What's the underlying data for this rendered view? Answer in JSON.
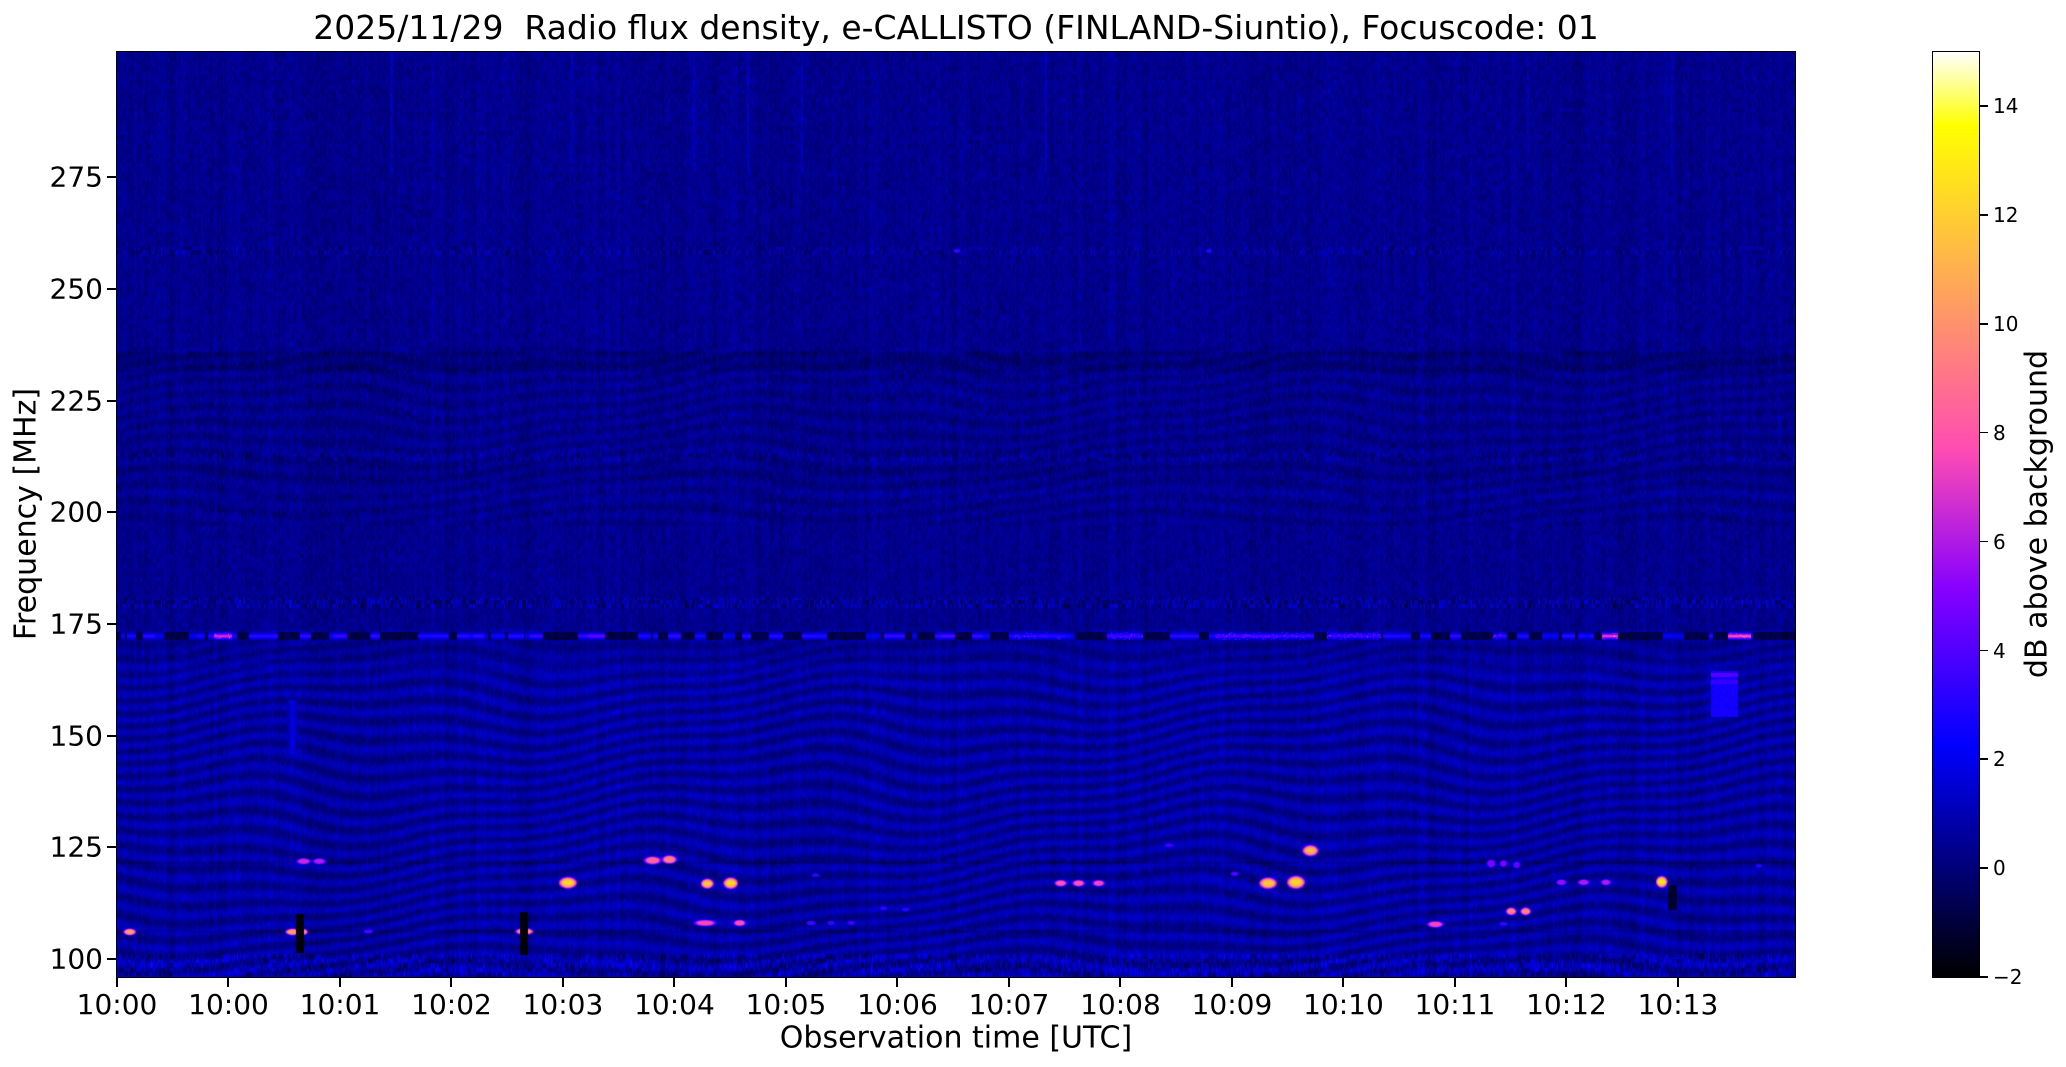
{
  "figure": {
    "background_color": "#ffffff",
    "text_color": "#000000",
    "spine_color": "#000000"
  },
  "chart_data": {
    "type": "heatmap",
    "title": "2025/11/29  Radio flux density, e-CALLISTO (FINLAND-Siuntio), Focuscode: 01",
    "xlabel": "Observation time [UTC]",
    "ylabel": "Frequency [MHz]",
    "colorbar_label": "dB above background",
    "colormap": "gnuplot2",
    "value_range": [
      -2,
      15
    ],
    "freq_axis_range": [
      96,
      303
    ],
    "time_axis_span_ticks": 15.05,
    "grid": false,
    "x_tick_labels": [
      "10:00",
      "10:00",
      "10:01",
      "10:02",
      "10:03",
      "10:04",
      "10:05",
      "10:06",
      "10:07",
      "10:08",
      "10:09",
      "10:10",
      "10:11",
      "10:12",
      "10:13"
    ],
    "y_tick_values": [
      275,
      250,
      225,
      200,
      175,
      150,
      125,
      100
    ],
    "y_tick_labels": [
      "275",
      "250",
      "225",
      "200",
      "175",
      "150",
      "125",
      "100"
    ],
    "colorbar_tick_values": [
      14,
      12,
      10,
      8,
      6,
      4,
      2,
      0,
      -2
    ],
    "colorbar_tick_labels": [
      "14",
      "12",
      "10",
      "8",
      "6",
      "4",
      "2",
      "0",
      "−2"
    ],
    "render_seed": 7,
    "background_levels": {
      "upper_region_db": 0.35,
      "lower_region_db": 0.75,
      "fringe_amplitude_db": 0.5,
      "region_split_mhz": 173.8
    },
    "rfi_line_173": {
      "f1": 171.5,
      "f2": 173.3,
      "base_db": -1.3,
      "bright_dashes": [
        {
          "t": 0.95,
          "db": 7.0,
          "w": 18
        },
        {
          "t": 2.0,
          "db": 3.5,
          "w": 14
        },
        {
          "t": 3.1,
          "db": 3.2,
          "w": 12
        },
        {
          "t": 4.3,
          "db": 4.5,
          "w": 16
        },
        {
          "t": 5.0,
          "db": 3.4,
          "w": 12
        },
        {
          "t": 6.2,
          "db": 3.2,
          "w": 12
        },
        {
          "t": 7.0,
          "db": 3.5,
          "w": 14
        },
        {
          "t": 7.45,
          "db": 4.0,
          "w": 14
        },
        {
          "t": 13.39,
          "db": 7.5,
          "w": 16
        },
        {
          "t": 14.55,
          "db": 8.2,
          "w": 22
        }
      ],
      "bright_segments": [
        {
          "t1": 8.0,
          "t2": 8.5,
          "db": 3.0
        },
        {
          "t1": 8.88,
          "t2": 9.2,
          "db": 3.6
        },
        {
          "t1": 9.85,
          "t2": 10.35,
          "db": 3.8
        },
        {
          "t1": 10.35,
          "t2": 10.73,
          "db": 3.6
        },
        {
          "t1": 10.85,
          "t2": 11.33,
          "db": 3.5
        },
        {
          "t1": 12.34,
          "t2": 12.42,
          "db": 3.4
        }
      ]
    },
    "speckle_bands": [
      {
        "f1": 178.8,
        "f2": 181.0,
        "strength": 1.1
      },
      {
        "f1": 211.5,
        "f2": 213.5,
        "strength": 0.55
      },
      {
        "f1": 257.5,
        "f2": 259.5,
        "strength": 0.7
      },
      {
        "f1": 96.2,
        "f2": 101.3,
        "strength": 0.9
      }
    ],
    "dark_bands": [
      {
        "f1": 231.5,
        "f2": 236.0,
        "depth": 0.3
      },
      {
        "f1": 207.5,
        "f2": 210.5,
        "depth": 0.12
      },
      {
        "f1": 166.5,
        "f2": 171.5,
        "depth": 0.25
      }
    ],
    "faint_lines": [
      {
        "f": 204,
        "boost": 0.3
      }
    ],
    "seam_lines": [
      106.3,
      121.7
    ],
    "bright_points": [
      {
        "t": 0.11,
        "f": 106.2,
        "db": 11,
        "w": 8,
        "h": 5
      },
      {
        "t": 1.57,
        "f": 106.2,
        "db": 11,
        "w": 9,
        "h": 5
      },
      {
        "t": 1.66,
        "f": 106.2,
        "db": 10.5,
        "w": 7,
        "h": 5
      },
      {
        "t": 1.67,
        "f": 122.0,
        "db": 6.5,
        "w": 11,
        "h": 5
      },
      {
        "t": 1.81,
        "f": 122.0,
        "db": 6.0,
        "w": 10,
        "h": 5
      },
      {
        "t": 2.25,
        "f": 106.3,
        "db": 4.0,
        "w": 8,
        "h": 4
      },
      {
        "t": 3.65,
        "f": 106.3,
        "db": 11.5,
        "w": 11,
        "h": 5
      },
      {
        "t": 4.04,
        "f": 117.2,
        "db": 12.5,
        "w": 11,
        "h": 8
      },
      {
        "t": 4.8,
        "f": 122.2,
        "db": 8.5,
        "w": 12,
        "h": 6
      },
      {
        "t": 4.95,
        "f": 122.4,
        "db": 9.5,
        "w": 10,
        "h": 6
      },
      {
        "t": 5.29,
        "f": 117.0,
        "db": 12.0,
        "w": 8,
        "h": 7
      },
      {
        "t": 5.5,
        "f": 117.1,
        "db": 12.5,
        "w": 9,
        "h": 8
      },
      {
        "t": 5.27,
        "f": 108.2,
        "db": 7.5,
        "w": 16,
        "h": 5
      },
      {
        "t": 5.58,
        "f": 108.2,
        "db": 7.8,
        "w": 9,
        "h": 5
      },
      {
        "t": 6.22,
        "f": 108.2,
        "db": 3.8,
        "w": 8,
        "h": 4
      },
      {
        "t": 6.4,
        "f": 108.2,
        "db": 3.5,
        "w": 7,
        "h": 4
      },
      {
        "t": 6.58,
        "f": 108.2,
        "db": 3.6,
        "w": 7,
        "h": 4
      },
      {
        "t": 6.26,
        "f": 118.9,
        "db": 3.2,
        "w": 7,
        "h": 4
      },
      {
        "t": 6.87,
        "f": 111.5,
        "db": 3.2,
        "w": 7,
        "h": 4
      },
      {
        "t": 7.07,
        "f": 111.2,
        "db": 3.2,
        "w": 7,
        "h": 4
      },
      {
        "t": 8.46,
        "f": 117.1,
        "db": 8.0,
        "w": 9,
        "h": 5
      },
      {
        "t": 8.62,
        "f": 117.1,
        "db": 8.0,
        "w": 9,
        "h": 5
      },
      {
        "t": 8.8,
        "f": 117.1,
        "db": 7.5,
        "w": 9,
        "h": 5
      },
      {
        "t": 9.43,
        "f": 125.6,
        "db": 3.5,
        "w": 8,
        "h": 4
      },
      {
        "t": 10.02,
        "f": 119.2,
        "db": 4.0,
        "w": 7,
        "h": 4
      },
      {
        "t": 10.32,
        "f": 117.1,
        "db": 12.0,
        "w": 11,
        "h": 8
      },
      {
        "t": 10.57,
        "f": 117.3,
        "db": 12.5,
        "w": 11,
        "h": 9
      },
      {
        "t": 10.7,
        "f": 124.4,
        "db": 11.5,
        "w": 10,
        "h": 8
      },
      {
        "t": 11.82,
        "f": 107.9,
        "db": 7.5,
        "w": 12,
        "h": 5
      },
      {
        "t": 12.32,
        "f": 121.5,
        "db": 5.0,
        "w": 7,
        "h": 7
      },
      {
        "t": 12.43,
        "f": 121.5,
        "db": 5.0,
        "w": 6,
        "h": 6
      },
      {
        "t": 12.55,
        "f": 121.2,
        "db": 4.5,
        "w": 6,
        "h": 6
      },
      {
        "t": 12.95,
        "f": 117.3,
        "db": 5.5,
        "w": 8,
        "h": 5
      },
      {
        "t": 13.15,
        "f": 117.3,
        "db": 6.0,
        "w": 9,
        "h": 5
      },
      {
        "t": 13.35,
        "f": 117.3,
        "db": 6.0,
        "w": 8,
        "h": 5
      },
      {
        "t": 13.85,
        "f": 117.4,
        "db": 13.0,
        "w": 7,
        "h": 8
      },
      {
        "t": 12.5,
        "f": 110.8,
        "db": 10.0,
        "w": 7,
        "h": 6
      },
      {
        "t": 12.63,
        "f": 110.8,
        "db": 10.0,
        "w": 7,
        "h": 6
      },
      {
        "t": 12.43,
        "f": 108.0,
        "db": 3.5,
        "w": 7,
        "h": 4
      },
      {
        "t": 7.53,
        "f": 258.6,
        "db": 3.5,
        "w": 6,
        "h": 4
      },
      {
        "t": 9.79,
        "f": 258.6,
        "db": 3.2,
        "w": 5,
        "h": 4
      },
      {
        "t": 14.72,
        "f": 121.0,
        "db": 3.0,
        "w": 6,
        "h": 4
      }
    ],
    "dropout_stripes": [
      {
        "t": 1.64,
        "f1": 101.5,
        "f2": 110.0,
        "w": 7,
        "db": -1.6
      },
      {
        "t": 3.65,
        "f1": 101.0,
        "f2": 110.5,
        "w": 7,
        "db": -1.6
      },
      {
        "t": 13.95,
        "f1": 111.0,
        "f2": 116.5,
        "w": 8,
        "db": -1.0
      }
    ],
    "enhancement_patch": {
      "t1": 14.3,
      "t2": 14.53,
      "f1": 154.5,
      "f2": 164.5,
      "db": 3.0
    },
    "column_streaks": [
      {
        "t": 1.57,
        "f1": 146,
        "f2": 158,
        "db": 2.2,
        "w": 7
      }
    ]
  }
}
